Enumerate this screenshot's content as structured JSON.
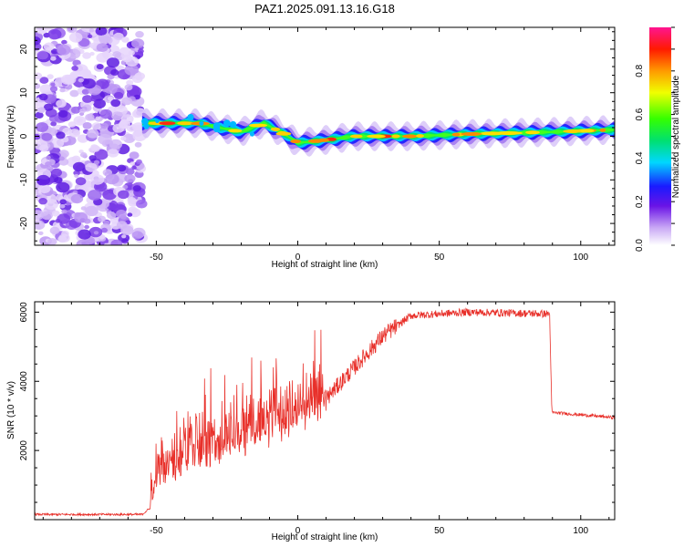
{
  "title": "PAZ1.2025.091.13.16.G18",
  "chart_data": [
    {
      "type": "heatmap",
      "xlabel": "Height of straight line (km)",
      "ylabel": "Frequency (Hz)",
      "xlim": [
        -93,
        112
      ],
      "ylim": [
        -25,
        25
      ],
      "xticks": [
        "-50",
        "0",
        "50",
        "100"
      ],
      "yticks": [
        "-20",
        "-10",
        "0",
        "10",
        "20"
      ],
      "colorbar": {
        "label": "Normalized spectral amplitude",
        "range": [
          0,
          1
        ],
        "ticks": [
          "0.0",
          "0.2",
          "0.4",
          "0.6",
          "0.8"
        ]
      },
      "noise_region_x": [
        -93,
        -55
      ],
      "ridge": [
        {
          "x": -55,
          "y": 3
        },
        {
          "x": -45,
          "y": 3
        },
        {
          "x": -35,
          "y": 3
        },
        {
          "x": -28,
          "y": 2
        },
        {
          "x": -20,
          "y": 1
        },
        {
          "x": -12,
          "y": 3
        },
        {
          "x": -6,
          "y": 1
        },
        {
          "x": 0,
          "y": -1.5
        },
        {
          "x": 8,
          "y": -1
        },
        {
          "x": 20,
          "y": 0
        },
        {
          "x": 40,
          "y": 0
        },
        {
          "x": 60,
          "y": 0.5
        },
        {
          "x": 90,
          "y": 1
        },
        {
          "x": 112,
          "y": 1.5
        }
      ]
    },
    {
      "type": "line",
      "xlabel": "Height of straight line (km)",
      "ylabel": "SNR (10 * v/v)",
      "xlim": [
        -93,
        112
      ],
      "ylim": [
        0,
        6300
      ],
      "xticks": [
        "-50",
        "0",
        "50",
        "100"
      ],
      "yticks": [
        "2000",
        "4000",
        "6000"
      ],
      "series": [
        {
          "color": "#e8302a",
          "envelope": [
            {
              "x": -93,
              "y": 150
            },
            {
              "x": -55,
              "y": 150
            },
            {
              "x": -52,
              "y": 350
            },
            {
              "x": -50,
              "y": 1300
            },
            {
              "x": -40,
              "y": 1700
            },
            {
              "x": -30,
              "y": 1900
            },
            {
              "x": -20,
              "y": 2300
            },
            {
              "x": -10,
              "y": 2600
            },
            {
              "x": 0,
              "y": 2900
            },
            {
              "x": 10,
              "y": 3500
            },
            {
              "x": 20,
              "y": 4400
            },
            {
              "x": 30,
              "y": 5300
            },
            {
              "x": 40,
              "y": 5900
            },
            {
              "x": 60,
              "y": 6000
            },
            {
              "x": 89,
              "y": 5950
            },
            {
              "x": 89.8,
              "y": 3100
            },
            {
              "x": 112,
              "y": 2950
            }
          ]
        }
      ]
    }
  ]
}
